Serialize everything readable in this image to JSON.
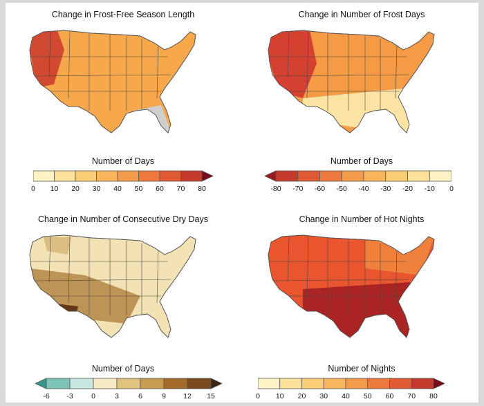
{
  "panels": [
    {
      "title": "Change in Frost-Free Season Length",
      "legend_title": "Number of Days",
      "ticks": [
        "0",
        "10",
        "20",
        "30",
        "40",
        "50",
        "60",
        "70",
        "80"
      ],
      "colors": [
        "#fdf2c4",
        "#fce29a",
        "#fbcd74",
        "#f9b55c",
        "#f49a4c",
        "#ec7a3e",
        "#e05a33",
        "#c63a2d",
        "#9a1a22"
      ],
      "arrow": "right",
      "arrow_color": "#7a0c1a",
      "map": {
        "base": "#f7a84a",
        "accent": "#c62a2a",
        "gray": "#cfcfcf"
      }
    },
    {
      "title": "Change in Number of Frost Days",
      "legend_title": "Number of Days",
      "ticks": [
        "-80",
        "-70",
        "-60",
        "-50",
        "-40",
        "-30",
        "-20",
        "-10",
        "0"
      ],
      "colors": [
        "#9a1a22",
        "#c63a2d",
        "#e05a33",
        "#ec7a3e",
        "#f49a4c",
        "#f9b55c",
        "#fbcd74",
        "#fce29a",
        "#fdf2c4"
      ],
      "arrow": "left",
      "arrow_color": "#7a0c1a",
      "map": {
        "base": "#f59a45",
        "accent": "#cc2a2a",
        "gray": "#fbe3a3"
      }
    },
    {
      "title": "Change in Number of Consecutive Dry Days",
      "legend_title": "Number of Days",
      "ticks": [
        "-6",
        "-3",
        "0",
        "3",
        "6",
        "9",
        "12",
        "15"
      ],
      "colors": [
        "#7fc4b8",
        "#c6e6df",
        "#f6e8c3",
        "#dfc27d",
        "#c89b52",
        "#a36a2a",
        "#7a4a1e",
        "#3e2614"
      ],
      "arrow": "both",
      "arrow_color": "#3e2614",
      "arrow_left_color": "#35978f",
      "map": {
        "base": "#f3e2b4",
        "accent": "#a7722e",
        "gray": "#d6b577"
      }
    },
    {
      "title": "Change in Number of Hot Nights",
      "legend_title": "Number of Nights",
      "ticks": [
        "0",
        "10",
        "20",
        "30",
        "40",
        "50",
        "60",
        "70",
        "80"
      ],
      "colors": [
        "#fdf2c4",
        "#fce29a",
        "#fbcd74",
        "#f9b55c",
        "#f49a4c",
        "#ec7a3e",
        "#e05a33",
        "#c63a2d",
        "#9a1a22"
      ],
      "arrow": "right",
      "arrow_color": "#7a0c1a",
      "map": {
        "base": "#e8552e",
        "accent": "#8e1020",
        "gray": "#f08a3e"
      }
    }
  ]
}
